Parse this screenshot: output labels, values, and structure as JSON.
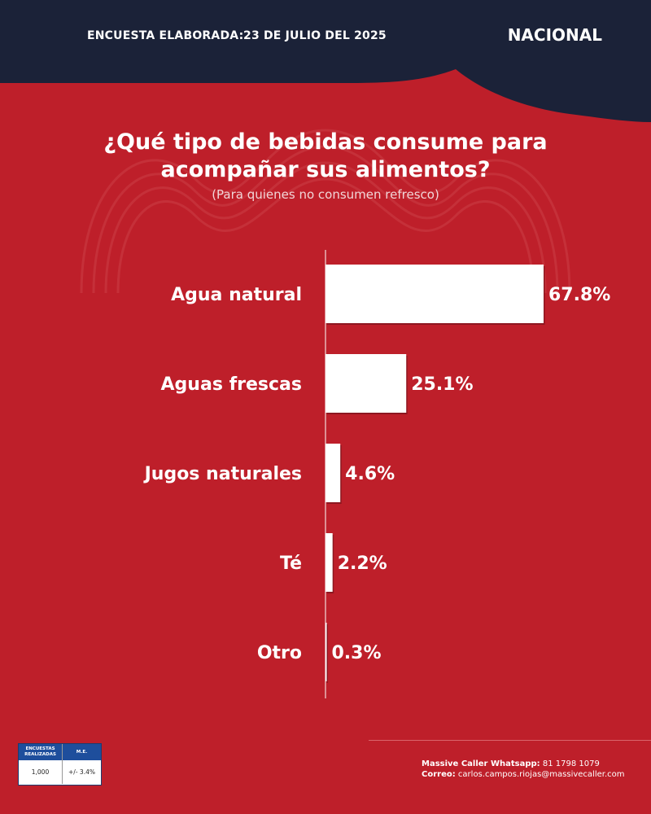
{
  "header": {
    "survey_label": "ENCUESTA ELABORADA:",
    "survey_date": "23 DE JULIO DEL 2025",
    "region": "NACIONAL"
  },
  "chart_data": {
    "type": "bar",
    "orientation": "horizontal",
    "title": "¿Qué tipo de bebidas consume para acompañar sus alimentos?",
    "subtitle": "(Para quienes no consumen refresco)",
    "categories": [
      "Agua natural",
      "Aguas frescas",
      "Jugos naturales",
      "Té",
      "Otro"
    ],
    "values": [
      67.8,
      25.1,
      4.6,
      2.2,
      0.3
    ],
    "value_labels": [
      "67.8%",
      "25.1%",
      "4.6%",
      "2.2%",
      "0.3%"
    ],
    "unit": "%",
    "grid": false,
    "colors": {
      "bar": "#ffffff",
      "background": "#be1f2a"
    }
  },
  "stats_box": {
    "col1_header": "ENCUESTAS REALIZADAS",
    "col2_header": "M.E.",
    "col1_value": "1,000",
    "col2_value": "+/- 3.4%"
  },
  "contact": {
    "whatsapp_label": "Massive Caller Whatsapp:",
    "whatsapp_value": "81 1798 1079",
    "email_label": "Correo:",
    "email_value": "carlos.campos.riojas@massivecaller.com"
  },
  "colors": {
    "accent": "#be1f2a",
    "dark": "#1b2238",
    "blue": "#1e4e9c"
  }
}
